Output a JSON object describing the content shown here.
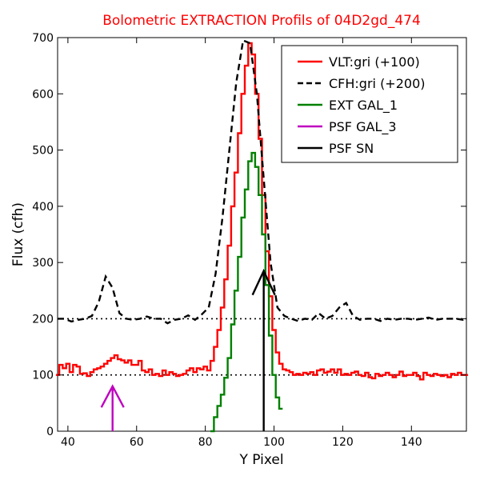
{
  "chart_data": {
    "type": "line",
    "title": "Bolometric EXTRACTION Profils of 04D2gd_474",
    "xlabel": "Y Pixel",
    "ylabel": "Flux (cfh)",
    "xlim": [
      37,
      156
    ],
    "ylim": [
      0,
      700
    ],
    "x_ticks": [
      40,
      60,
      80,
      100,
      120,
      140
    ],
    "y_ticks": [
      0,
      100,
      200,
      300,
      400,
      500,
      600,
      700
    ],
    "grid": false,
    "legend_position": "top-right",
    "reference_lines": [
      {
        "y": 100,
        "style": "dotted",
        "color": "#000000"
      },
      {
        "y": 200,
        "style": "dotted",
        "color": "#000000"
      }
    ],
    "series": [
      {
        "name": "VLT:gri (+100)",
        "color": "#ff0000",
        "style": "steps",
        "x": [
          37,
          38,
          39,
          40,
          41,
          42,
          43,
          44,
          45,
          46,
          47,
          48,
          49,
          50,
          51,
          52,
          53,
          54,
          55,
          56,
          57,
          58,
          59,
          60,
          61,
          62,
          63,
          64,
          65,
          66,
          67,
          68,
          69,
          70,
          71,
          72,
          73,
          74,
          75,
          76,
          77,
          78,
          79,
          80,
          81,
          82,
          83,
          84,
          85,
          86,
          87,
          88,
          89,
          90,
          91,
          92,
          93,
          94,
          95,
          96,
          97,
          98,
          99,
          100,
          101,
          102,
          103,
          104,
          105,
          106,
          107,
          108,
          109,
          110,
          111,
          112,
          113,
          114,
          115,
          116,
          117,
          118,
          119,
          120,
          121,
          122,
          123,
          124,
          125,
          126,
          127,
          128,
          129,
          130,
          131,
          132,
          133,
          134,
          135,
          136,
          137,
          138,
          139,
          140,
          141,
          142,
          143,
          144,
          145,
          146,
          147,
          148,
          149,
          150,
          151,
          152,
          153,
          154,
          155,
          156
        ],
        "y": [
          100,
          118,
          112,
          120,
          105,
          118,
          115,
          102,
          103,
          98,
          105,
          110,
          112,
          115,
          120,
          125,
          130,
          135,
          128,
          126,
          122,
          126,
          118,
          118,
          125,
          108,
          105,
          110,
          100,
          102,
          98,
          108,
          100,
          105,
          102,
          98,
          100,
          102,
          108,
          112,
          105,
          112,
          110,
          115,
          108,
          125,
          150,
          180,
          220,
          270,
          330,
          400,
          460,
          530,
          600,
          650,
          690,
          670,
          600,
          520,
          420,
          320,
          240,
          180,
          140,
          120,
          110,
          108,
          105,
          100,
          102,
          100,
          104,
          102,
          105,
          100,
          108,
          110,
          104,
          106,
          110,
          104,
          110,
          100,
          102,
          100,
          104,
          106,
          100,
          98,
          104,
          96,
          94,
          102,
          98,
          100,
          104,
          100,
          96,
          100,
          106,
          98,
          100,
          100,
          104,
          98,
          92,
          104,
          100,
          98,
          102,
          100,
          98,
          100,
          96,
          102,
          100,
          104,
          100,
          100
        ]
      },
      {
        "name": "CFH:gri (+200)",
        "color": "#000000",
        "style": "dashed",
        "x": [
          37,
          39,
          41,
          43,
          45,
          47,
          49,
          51,
          53,
          55,
          57,
          59,
          61,
          63,
          65,
          67,
          69,
          71,
          73,
          75,
          77,
          79,
          81,
          83,
          85,
          87,
          89,
          91,
          93,
          95,
          97,
          99,
          101,
          103,
          105,
          107,
          109,
          111,
          113,
          115,
          117,
          119,
          121,
          123,
          125,
          127,
          129,
          131,
          133,
          135,
          137,
          139,
          141,
          143,
          145,
          147,
          149,
          151,
          153,
          155,
          156
        ],
        "y": [
          200,
          200,
          195,
          198,
          200,
          205,
          230,
          275,
          255,
          210,
          200,
          198,
          200,
          204,
          200,
          200,
          192,
          198,
          200,
          206,
          198,
          208,
          220,
          280,
          380,
          500,
          620,
          695,
          690,
          600,
          450,
          300,
          220,
          205,
          200,
          196,
          200,
          198,
          210,
          200,
          205,
          220,
          228,
          205,
          198,
          200,
          200,
          196,
          200,
          198,
          200,
          200,
          198,
          200,
          202,
          198,
          200,
          200,
          200,
          198,
          200
        ]
      },
      {
        "name": "EXT GAL_1",
        "color": "#008000",
        "style": "steps",
        "x": [
          82,
          83,
          84,
          85,
          86,
          87,
          88,
          89,
          90,
          91,
          92,
          93,
          94,
          95,
          96,
          97,
          98,
          99,
          100,
          101,
          102
        ],
        "y": [
          0,
          25,
          45,
          65,
          95,
          130,
          190,
          250,
          310,
          380,
          430,
          480,
          495,
          470,
          420,
          350,
          260,
          170,
          100,
          60,
          40
        ]
      }
    ],
    "arrows": [
      {
        "name": "PSF GAL_3",
        "color": "#bf00bf",
        "x": 53,
        "y_from": 0,
        "y_to": 80
      },
      {
        "name": "PSF SN",
        "color": "#000000",
        "x": 97,
        "y_from": 0,
        "y_to": 285
      }
    ]
  }
}
